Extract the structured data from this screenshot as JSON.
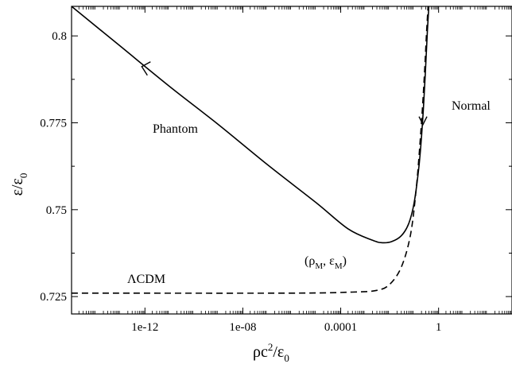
{
  "chart_data": {
    "type": "line",
    "x_scale": "log",
    "xlim": [
      1e-15,
      1000
    ],
    "ylim": [
      0.72,
      0.8085
    ],
    "xlabel": {
      "main": "ρc",
      "sup": "2",
      "tail": "/ε",
      "sub": "0"
    },
    "ylabel": {
      "main": "ε/ε",
      "sub": "0"
    },
    "x_ticks": [
      {
        "value": 1e-12,
        "label": "1e-12"
      },
      {
        "value": 1e-08,
        "label": "1e-08"
      },
      {
        "value": 0.0001,
        "label": "0.0001"
      },
      {
        "value": 1,
        "label": "1"
      }
    ],
    "y_ticks": [
      {
        "value": 0.725,
        "label": "0.725"
      },
      {
        "value": 0.75,
        "label": "0.75"
      },
      {
        "value": 0.775,
        "label": "0.775"
      },
      {
        "value": 0.8,
        "label": "0.8"
      }
    ],
    "series": [
      {
        "style": "solid",
        "points": [
          [
            1e-15,
            0.8085
          ],
          [
            1e-13,
            0.797
          ],
          [
            1e-11,
            0.7855
          ],
          [
            1e-09,
            0.7745
          ],
          [
            1e-07,
            0.763
          ],
          [
            1e-05,
            0.752
          ],
          [
            0.0002,
            0.7445
          ],
          [
            0.002,
            0.7412
          ],
          [
            0.005,
            0.7405
          ],
          [
            0.012,
            0.7408
          ],
          [
            0.03,
            0.7425
          ],
          [
            0.06,
            0.746
          ],
          [
            0.1,
            0.752
          ],
          [
            0.16,
            0.763
          ],
          [
            0.22,
            0.775
          ],
          [
            0.28,
            0.788
          ],
          [
            0.35,
            0.8015
          ],
          [
            0.4,
            0.8085
          ]
        ]
      },
      {
        "style": "dashed",
        "points": [
          [
            1e-15,
            0.726
          ],
          [
            1e-06,
            0.726
          ],
          [
            0.0003,
            0.7263
          ],
          [
            0.003,
            0.7268
          ],
          [
            0.01,
            0.7285
          ],
          [
            0.03,
            0.7335
          ],
          [
            0.07,
            0.7425
          ],
          [
            0.12,
            0.7555
          ],
          [
            0.18,
            0.7705
          ],
          [
            0.25,
            0.786
          ],
          [
            0.32,
            0.8005
          ],
          [
            0.37,
            0.8085
          ]
        ]
      }
    ],
    "annotations": {
      "phantom": "Phantom",
      "normal": "Normal",
      "lcdm": "ΛCDM",
      "point_label": {
        "open": "(ρ",
        "s1": "M",
        "mid": ", ε",
        "s2": "M",
        "close": ")"
      }
    },
    "arrows": [
      {
        "at": [
          1e-12,
          0.7905
        ],
        "direction": "up-left"
      },
      {
        "at": [
          0.23,
          0.7745
        ],
        "direction": "down"
      }
    ],
    "grid": false,
    "minor_ticks": true
  }
}
